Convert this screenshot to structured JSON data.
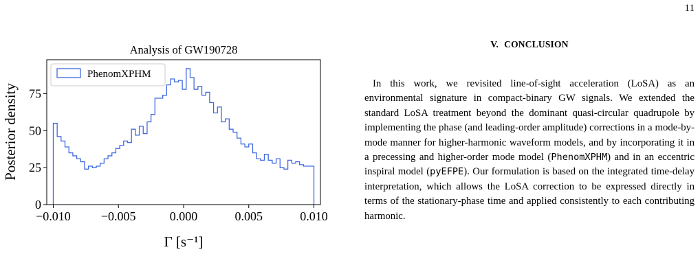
{
  "page": {
    "number": "11"
  },
  "figure": {
    "chart_data": {
      "type": "histogram",
      "title": "Analysis of GW190728",
      "xlabel": "Γ [s⁻¹]",
      "ylabel": "Posterior density",
      "xlim": [
        -0.0105,
        0.0105
      ],
      "ylim": [
        0,
        98
      ],
      "xticks": [
        -0.01,
        -0.005,
        0.0,
        0.005,
        0.01
      ],
      "xtick_labels": [
        "−0.010",
        "−0.005",
        "0.000",
        "0.005",
        "0.010"
      ],
      "yticks": [
        0,
        25,
        50,
        75
      ],
      "ytick_labels": [
        "0",
        "25",
        "50",
        "75"
      ],
      "grid": false,
      "legend_position": "top-left",
      "color": "#4169e1",
      "bin_edges": [
        -0.01,
        -0.0097,
        -0.0094,
        -0.0091,
        -0.0088,
        -0.0085,
        -0.0082,
        -0.0079,
        -0.0076,
        -0.0073,
        -0.007,
        -0.0067,
        -0.0064,
        -0.0061,
        -0.0058,
        -0.0055,
        -0.0052,
        -0.0049,
        -0.0046,
        -0.0043,
        -0.004,
        -0.0037,
        -0.0034,
        -0.0031,
        -0.0028,
        -0.0025,
        -0.0022,
        -0.0019,
        -0.0016,
        -0.0013,
        -0.001,
        -0.0007,
        -0.0004,
        -0.0001,
        0.0002,
        0.0005,
        0.0008,
        0.0011,
        0.0014,
        0.0017,
        0.002,
        0.0023,
        0.0026,
        0.0029,
        0.0032,
        0.0035,
        0.0038,
        0.0041,
        0.0044,
        0.0047,
        0.005,
        0.0053,
        0.0056,
        0.0059,
        0.0062,
        0.0065,
        0.0068,
        0.0071,
        0.0074,
        0.0077,
        0.008,
        0.0083,
        0.0086,
        0.0089,
        0.0092,
        0.0095,
        0.0098,
        0.01
      ],
      "series": [
        {
          "name": "PhenomXPHM",
          "values": [
            55,
            46,
            43,
            39,
            35,
            33,
            31,
            29,
            24,
            26,
            25,
            26,
            28,
            31,
            33,
            35,
            38,
            40,
            43,
            42,
            51,
            47,
            53,
            48,
            56,
            61,
            72,
            72,
            74,
            81,
            85,
            83,
            84,
            78,
            92,
            86,
            78,
            80,
            74,
            76,
            69,
            62,
            66,
            56,
            58,
            51,
            49,
            45,
            41,
            39,
            41,
            35,
            31,
            30,
            34,
            30,
            28,
            31,
            25,
            24,
            30,
            28,
            29,
            27,
            26,
            26,
            26
          ]
        }
      ]
    }
  },
  "text": {
    "section_number": "V.",
    "section_title": "CONCLUSION",
    "p1": "In this work, we revisited line-of-sight acceleration (LoSA) as an environmental signature in compact-binary GW signals. We extended the standard LoSA treatment beyond the dominant quasi-circular quadrupole by implementing the phase (and leading-order amplitude) corrections in a mode-by-mode manner for higher-harmonic waveform models, and by incorporating it in a precessing and higher-order mode model (",
    "code1": "PhenomXPHM",
    "p2": ") and in an eccentric inspiral model (",
    "code2": "pyEFPE",
    "p3": "). Our formulation is based on the integrated time-delay interpretation, which allows the LoSA correction to be expressed directly in terms of the stationary-phase time and applied consistently to each contributing harmonic."
  }
}
